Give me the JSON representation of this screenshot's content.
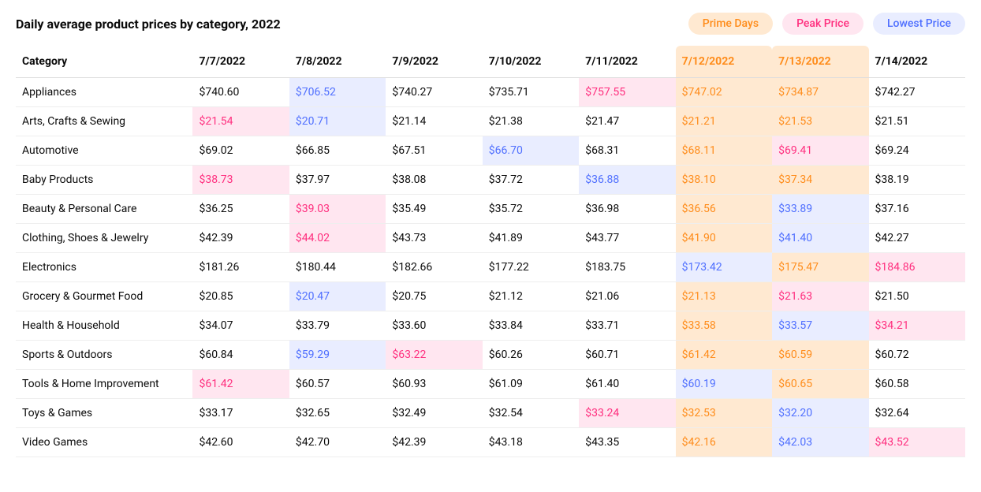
{
  "title": "Daily average product prices by category, 2022",
  "colors": {
    "text": "#0b0b0b",
    "prime_text": "#ff8c1a",
    "prime_bg": "#ffe9d1",
    "peak_text": "#ff2e7e",
    "peak_bg": "#ffe6f0",
    "lowest_text": "#4f6fff",
    "lowest_bg": "#e9edff",
    "border": "#eeeeee"
  },
  "legend": [
    {
      "label": "Prime Days",
      "text_color": "#ff8c1a",
      "bg_color": "#ffe9d1"
    },
    {
      "label": "Peak Price",
      "text_color": "#ff2e7e",
      "bg_color": "#ffe6f0"
    },
    {
      "label": "Lowest Price",
      "text_color": "#4f6fff",
      "bg_color": "#e9edff"
    }
  ],
  "table": {
    "category_header": "Category",
    "dates": [
      "7/7/2022",
      "7/8/2022",
      "7/9/2022",
      "7/10/2022",
      "7/11/2022",
      "7/12/2022",
      "7/13/2022",
      "7/14/2022"
    ],
    "prime_columns": [
      5,
      6
    ],
    "rows": [
      {
        "category": "Appliances",
        "cells": [
          {
            "v": "$740.60",
            "s": "normal"
          },
          {
            "v": "$706.52",
            "s": "lowest"
          },
          {
            "v": "$740.27",
            "s": "normal"
          },
          {
            "v": "$735.71",
            "s": "normal"
          },
          {
            "v": "$757.55",
            "s": "peak"
          },
          {
            "v": "$747.02",
            "s": "prime"
          },
          {
            "v": "$734.87",
            "s": "prime"
          },
          {
            "v": "$742.27",
            "s": "normal"
          }
        ]
      },
      {
        "category": "Arts, Crafts & Sewing",
        "cells": [
          {
            "v": "$21.54",
            "s": "peak"
          },
          {
            "v": "$20.71",
            "s": "lowest"
          },
          {
            "v": "$21.14",
            "s": "normal"
          },
          {
            "v": "$21.38",
            "s": "normal"
          },
          {
            "v": "$21.47",
            "s": "normal"
          },
          {
            "v": "$21.21",
            "s": "prime"
          },
          {
            "v": "$21.53",
            "s": "prime"
          },
          {
            "v": "$21.51",
            "s": "normal"
          }
        ]
      },
      {
        "category": "Automotive",
        "cells": [
          {
            "v": "$69.02",
            "s": "normal"
          },
          {
            "v": "$66.85",
            "s": "normal"
          },
          {
            "v": "$67.51",
            "s": "normal"
          },
          {
            "v": "$66.70",
            "s": "lowest"
          },
          {
            "v": "$68.31",
            "s": "normal"
          },
          {
            "v": "$68.11",
            "s": "prime"
          },
          {
            "v": "$69.41",
            "s": "prime_peak"
          },
          {
            "v": "$69.24",
            "s": "normal"
          }
        ]
      },
      {
        "category": "Baby Products",
        "cells": [
          {
            "v": "$38.73",
            "s": "peak"
          },
          {
            "v": "$37.97",
            "s": "normal"
          },
          {
            "v": "$38.08",
            "s": "normal"
          },
          {
            "v": "$37.72",
            "s": "normal"
          },
          {
            "v": "$36.88",
            "s": "lowest"
          },
          {
            "v": "$38.10",
            "s": "prime"
          },
          {
            "v": "$37.34",
            "s": "prime"
          },
          {
            "v": "$38.19",
            "s": "normal"
          }
        ]
      },
      {
        "category": "Beauty & Personal Care",
        "cells": [
          {
            "v": "$36.25",
            "s": "normal"
          },
          {
            "v": "$39.03",
            "s": "peak"
          },
          {
            "v": "$35.49",
            "s": "normal"
          },
          {
            "v": "$35.72",
            "s": "normal"
          },
          {
            "v": "$36.98",
            "s": "normal"
          },
          {
            "v": "$36.56",
            "s": "prime"
          },
          {
            "v": "$33.89",
            "s": "prime_lowest"
          },
          {
            "v": "$37.16",
            "s": "normal"
          }
        ]
      },
      {
        "category": "Clothing, Shoes & Jewelry",
        "cells": [
          {
            "v": "$42.39",
            "s": "normal"
          },
          {
            "v": "$44.02",
            "s": "peak"
          },
          {
            "v": "$43.73",
            "s": "normal"
          },
          {
            "v": "$41.89",
            "s": "normal"
          },
          {
            "v": "$43.77",
            "s": "normal"
          },
          {
            "v": "$41.90",
            "s": "prime"
          },
          {
            "v": "$41.40",
            "s": "prime_lowest"
          },
          {
            "v": "$42.27",
            "s": "normal"
          }
        ]
      },
      {
        "category": "Electronics",
        "cells": [
          {
            "v": "$181.26",
            "s": "normal"
          },
          {
            "v": "$180.44",
            "s": "normal"
          },
          {
            "v": "$182.66",
            "s": "normal"
          },
          {
            "v": "$177.22",
            "s": "normal"
          },
          {
            "v": "$183.75",
            "s": "normal"
          },
          {
            "v": "$173.42",
            "s": "prime_lowest"
          },
          {
            "v": "$175.47",
            "s": "prime"
          },
          {
            "v": "$184.86",
            "s": "peak"
          }
        ]
      },
      {
        "category": "Grocery & Gourmet Food",
        "cells": [
          {
            "v": "$20.85",
            "s": "normal"
          },
          {
            "v": "$20.47",
            "s": "lowest"
          },
          {
            "v": "$20.75",
            "s": "normal"
          },
          {
            "v": "$21.12",
            "s": "normal"
          },
          {
            "v": "$21.06",
            "s": "normal"
          },
          {
            "v": "$21.13",
            "s": "prime"
          },
          {
            "v": "$21.63",
            "s": "prime_peak"
          },
          {
            "v": "$21.50",
            "s": "normal"
          }
        ]
      },
      {
        "category": "Health & Household",
        "cells": [
          {
            "v": "$34.07",
            "s": "normal"
          },
          {
            "v": "$33.79",
            "s": "normal"
          },
          {
            "v": "$33.60",
            "s": "normal"
          },
          {
            "v": "$33.84",
            "s": "normal"
          },
          {
            "v": "$33.71",
            "s": "normal"
          },
          {
            "v": "$33.58",
            "s": "prime"
          },
          {
            "v": "$33.57",
            "s": "prime_lowest"
          },
          {
            "v": "$34.21",
            "s": "peak"
          }
        ]
      },
      {
        "category": "Sports & Outdoors",
        "cells": [
          {
            "v": "$60.84",
            "s": "normal"
          },
          {
            "v": "$59.29",
            "s": "lowest"
          },
          {
            "v": "$63.22",
            "s": "peak"
          },
          {
            "v": "$60.26",
            "s": "normal"
          },
          {
            "v": "$60.71",
            "s": "normal"
          },
          {
            "v": "$61.42",
            "s": "prime"
          },
          {
            "v": "$60.59",
            "s": "prime"
          },
          {
            "v": "$60.72",
            "s": "normal"
          }
        ]
      },
      {
        "category": "Tools & Home Improvement",
        "cells": [
          {
            "v": "$61.42",
            "s": "peak"
          },
          {
            "v": "$60.57",
            "s": "normal"
          },
          {
            "v": "$60.93",
            "s": "normal"
          },
          {
            "v": "$61.09",
            "s": "normal"
          },
          {
            "v": "$61.40",
            "s": "normal"
          },
          {
            "v": "$60.19",
            "s": "prime_lowest"
          },
          {
            "v": "$60.65",
            "s": "prime"
          },
          {
            "v": "$60.58",
            "s": "normal"
          }
        ]
      },
      {
        "category": "Toys & Games",
        "cells": [
          {
            "v": "$33.17",
            "s": "normal"
          },
          {
            "v": "$32.65",
            "s": "normal"
          },
          {
            "v": "$32.49",
            "s": "normal"
          },
          {
            "v": "$32.54",
            "s": "normal"
          },
          {
            "v": "$33.24",
            "s": "peak"
          },
          {
            "v": "$32.53",
            "s": "prime"
          },
          {
            "v": "$32.20",
            "s": "prime_lowest"
          },
          {
            "v": "$32.64",
            "s": "normal"
          }
        ]
      },
      {
        "category": "Video Games",
        "cells": [
          {
            "v": "$42.60",
            "s": "normal"
          },
          {
            "v": "$42.70",
            "s": "normal"
          },
          {
            "v": "$42.39",
            "s": "normal"
          },
          {
            "v": "$43.18",
            "s": "normal"
          },
          {
            "v": "$43.35",
            "s": "normal"
          },
          {
            "v": "$42.16",
            "s": "prime"
          },
          {
            "v": "$42.03",
            "s": "prime_lowest"
          },
          {
            "v": "$43.52",
            "s": "peak"
          }
        ]
      }
    ]
  }
}
